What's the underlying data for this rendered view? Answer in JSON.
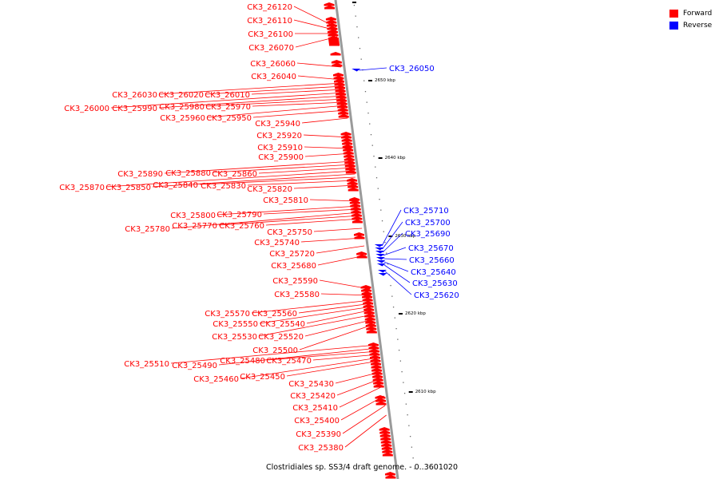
{
  "caption": "Clostridiales sp. SS3/4 draft genome. - 0..3601020",
  "legend": {
    "forward": {
      "label": "Forward",
      "color": "#ff0000"
    },
    "reverse": {
      "label": "Reverse",
      "color": "#0000ff"
    }
  },
  "scale_labels": [
    "2650 kbp",
    "2640 kbp",
    "2630 kbp",
    "2620 kbp",
    "2610 kbp"
  ],
  "genes_forward": [
    "CK3_26120",
    "CK3_26110",
    "CK3_26100",
    "CK3_26070",
    "CK3_26060",
    "CK3_26040",
    "CK3_26030",
    "CK3_26020",
    "CK3_26010",
    "CK3_26000",
    "CK3_25990",
    "CK3_25980",
    "CK3_25970",
    "CK3_25960",
    "CK3_25950",
    "CK3_25940",
    "CK3_25920",
    "CK3_25910",
    "CK3_25900",
    "CK3_25890",
    "CK3_25880",
    "CK3_25860",
    "CK3_25870",
    "CK3_25850",
    "CK3_25840",
    "CK3_25830",
    "CK3_25820",
    "CK3_25810",
    "CK3_25800",
    "CK3_25790",
    "CK3_25780",
    "CK3_25770",
    "CK3_25760",
    "CK3_25750",
    "CK3_25740",
    "CK3_25720",
    "CK3_25680",
    "CK3_25590",
    "CK3_25580",
    "CK3_25570",
    "CK3_25560",
    "CK3_25550",
    "CK3_25540",
    "CK3_25530",
    "CK3_25520",
    "CK3_25500",
    "CK3_25510",
    "CK3_25490",
    "CK3_25480",
    "CK3_25470",
    "CK3_25460",
    "CK3_25450",
    "CK3_25430",
    "CK3_25420",
    "CK3_25410",
    "CK3_25400",
    "CK3_25390",
    "CK3_25380"
  ],
  "genes_reverse": [
    "CK3_26050",
    "CK3_25710",
    "CK3_25700",
    "CK3_25690",
    "CK3_25670",
    "CK3_25660",
    "CK3_25640",
    "CK3_25630",
    "CK3_25620"
  ]
}
